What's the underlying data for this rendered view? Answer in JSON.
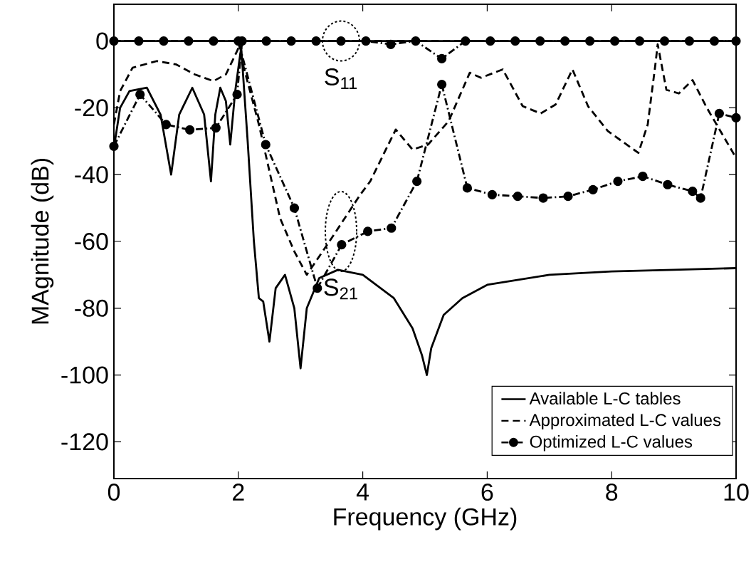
{
  "chart_data": {
    "type": "line",
    "xlabel": "Frequency (GHz)",
    "ylabel": "MAgnitude (dB)",
    "xlim": [
      0,
      10
    ],
    "ylim": [
      -131,
      11
    ],
    "xticks": [
      0,
      2,
      4,
      6,
      8,
      10
    ],
    "yticks": [
      0,
      -20,
      -40,
      -60,
      -80,
      -100,
      -120
    ],
    "legend": "bottom right",
    "grid": false,
    "annotations": [
      {
        "text": "S$_{11}$",
        "x": 3.65,
        "y": 0
      },
      {
        "text": "S$_{21}$",
        "x": 3.65,
        "y": -57
      }
    ],
    "series": [
      {
        "name": "Available L-C tables",
        "color": "#000000",
        "line_style": "solid",
        "marker": "none",
        "x": [
          0,
          1,
          2,
          2.05,
          2.15,
          2.25,
          2.33,
          2.4,
          2.5,
          2.6,
          2.75,
          2.9,
          3.0,
          3.1,
          3.3,
          3.6,
          4.0,
          4.5,
          4.8,
          4.95,
          5.03,
          5.1,
          5.3,
          5.6,
          6,
          7,
          8,
          9,
          10
        ],
        "values": [
          0,
          0,
          0,
          -3,
          -30,
          -60,
          -77,
          -78,
          -90,
          -74,
          -70,
          -80,
          -98,
          -80,
          -71,
          -68.5,
          -70,
          -77,
          -86,
          -94,
          -100,
          -92,
          -82,
          -77,
          -73,
          -70,
          -69,
          -68.5,
          -68
        ]
      },
      {
        "color": "#000000",
        "line_style": "solid",
        "marker": "none",
        "x": [
          0,
          0.1,
          0.25,
          0.53,
          0.75,
          0.92,
          1.05,
          1.26,
          1.45,
          1.56,
          1.63,
          1.71,
          1.8,
          1.87,
          1.95,
          2.03,
          2.07,
          4,
          6,
          8,
          10
        ],
        "values": [
          -32,
          -20,
          -15,
          -14,
          -22,
          -40,
          -22,
          -14,
          -22,
          -42,
          -22,
          -14,
          -18,
          -31,
          -15,
          -4,
          0,
          0,
          0,
          0,
          0
        ]
      },
      {
        "name": "Approximated L-C values",
        "color": "#000000",
        "line_style": "dashed",
        "marker": "none",
        "x": [
          0,
          1,
          2,
          2.06,
          2.33,
          2.67,
          2.9,
          3.1,
          3.5,
          3.96,
          4.12,
          4.53,
          4.8,
          5.05,
          5.38,
          5.72,
          5.9,
          6.25,
          6.57,
          6.86,
          7.1,
          7.37,
          7.62,
          7.94,
          8.43,
          8.58,
          8.7,
          8.74,
          8.88,
          9.08,
          9.3,
          9.53,
          10
        ],
        "values": [
          0,
          0,
          0,
          -6,
          -25,
          -53,
          -63,
          -70,
          -59,
          -46,
          -42,
          -26.5,
          -32.5,
          -31,
          -24,
          -9.5,
          -11,
          -8.5,
          -19.5,
          -21.7,
          -19,
          -8.5,
          -19.5,
          -27,
          -33.5,
          -25,
          -7.5,
          -1,
          -14.6,
          -15.7,
          -11.7,
          -20,
          -35
        ]
      },
      {
        "color": "#000000",
        "line_style": "dashed",
        "marker": "none",
        "x": [
          0,
          0.1,
          0.3,
          0.69,
          1.0,
          1.3,
          1.6,
          1.8,
          1.98,
          2.05,
          4,
          6,
          8,
          10
        ],
        "values": [
          -25,
          -15,
          -8,
          -6,
          -7,
          -10,
          -12,
          -10,
          -3,
          0,
          0,
          0,
          0,
          0
        ]
      },
      {
        "name": "Optimized L-C values",
        "color": "#000000",
        "line_style": "dashdot",
        "marker": "circle",
        "x": [
          0,
          0.4,
          0.8,
          1.2,
          1.6,
          2.0,
          2.44,
          2.9,
          3.27,
          3.66,
          4.08,
          4.46,
          4.87,
          5.27,
          5.68,
          6.08,
          6.49,
          6.9,
          7.3,
          7.7,
          8.1,
          8.5,
          8.9,
          9.3,
          9.43,
          9.73,
          10
        ],
        "values": [
          0,
          0,
          0,
          0,
          0,
          0,
          -31,
          -50,
          -74,
          -61,
          -57,
          -56,
          -42,
          -13,
          -44,
          -46,
          -46.5,
          -47,
          -46.5,
          -44.5,
          -42,
          -40.5,
          -43,
          -45,
          -47,
          -21.7,
          -23
        ]
      },
      {
        "color": "#000000",
        "line_style": "dashdot",
        "marker": "circle",
        "x": [
          0,
          0.42,
          0.84,
          1.22,
          1.64,
          1.98,
          2.06,
          2.45,
          2.85,
          3.25,
          3.65,
          4.05,
          4.45,
          4.85,
          5.27,
          5.65,
          6.05,
          6.45,
          6.85,
          7.25,
          7.65,
          8.05,
          8.45,
          8.85,
          9.25,
          9.65,
          10
        ],
        "values": [
          -31.5,
          -16,
          -25,
          -26.6,
          -26,
          -16,
          0,
          0,
          0,
          0,
          0,
          0,
          -1,
          0,
          -5.3,
          0,
          0,
          0,
          0,
          0,
          0,
          0,
          0,
          0,
          0,
          0,
          0
        ]
      }
    ]
  }
}
